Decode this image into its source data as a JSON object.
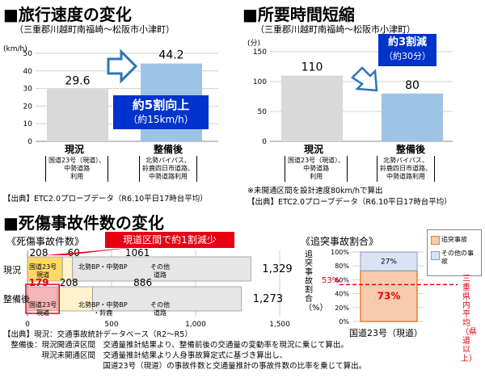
{
  "speed": {
    "title": "旅行速度の変化",
    "subtitle": "（三重郡川越町南福崎～松阪市小津町）",
    "unit": "(km/h)",
    "callout_l1": "約5割向上",
    "callout_l2": "（約15km/h）",
    "cat_current": "現況",
    "cat_after": "整備後",
    "route_current": [
      "国道23号（現道）、",
      "中勢道路",
      "利用"
    ],
    "route_after": [
      "北勢バイパス、",
      "鈴鹿四日市道路、",
      "中勢道路利用"
    ],
    "source": "【出典】ETC2.0プローブデータ（R6.10平日17時台平均）"
  },
  "time": {
    "title": "所要時間短縮",
    "subtitle": "（三重郡川越町南福崎～松阪市小津町）",
    "unit": "(分)",
    "callout_l1": "約3割減",
    "callout_l2": "（約30分）",
    "cat_current": "現況",
    "cat_after": "整備後",
    "route_current": [
      "国道23号（現道）、",
      "中勢道路",
      "利用"
    ],
    "route_after": [
      "北勢バイパス、",
      "鈴鹿四日市道路、",
      "中勢道路利用"
    ],
    "note": "※未開通区間を設計速度80km/hで算出",
    "source": "【出典】ETC2.0プローブデータ（R6.10平日17時台平均）"
  },
  "casualty": {
    "title": "死傷事故件数の変化",
    "subtitle": "《死傷事故件数》",
    "callout": "現道区間で約1割減少",
    "row_current": "現況",
    "row_after": "整備後",
    "seg_current_1": "国道23号",
    "seg_current_1b": "現道",
    "seg_current_2": "北勢BP・中勢BP",
    "seg_current_3a": "その他",
    "seg_current_3b": "道路",
    "seg_after_1": "国道23号",
    "seg_after_1b": "現道",
    "seg_after_2a": "北勢BP・中勢BP",
    "seg_after_2b": "・鈴鹿",
    "seg_after_3a": "その他",
    "seg_after_3b": "道路",
    "src_lines": [
      "【出典】現況：交通事故統計データベース（R2～R5）",
      "　整備後：現況開通済区間　交通量推計結果より、整備前後の交通量の変動率を現況に乗じて算出。",
      "　　　　　現況未開通区間　交通量推計結果より人身事故算定式に基づき算出し、",
      "　　　　　　　　　　　　　国道23号（現道）の事故件数と交通量推計の事故件数の比率を乗じて算出。"
    ]
  },
  "rearend": {
    "subtitle": "《追突事故割合》",
    "ylabel": "追突事故割合（%）",
    "xlabel": "国道23号（現道）",
    "legend_rear": "追突事故",
    "legend_other": "その他の事故",
    "avg_label": "53%",
    "side_label": "三重県内平均（県道以上）"
  },
  "colors": {
    "gray_bar": "#d9d9d9",
    "blue_bar": "#9dc3e6",
    "callout_blue": "#0033cc",
    "arrow_blue": "#2e75b6",
    "yellow": "#ffd966",
    "pink": "#f4b6b6",
    "red": "#e60012",
    "orange": "#f8cbad",
    "orange_border": "#ed7d31",
    "light_blue": "#dae3f3"
  },
  "chart_data": [
    {
      "type": "bar",
      "title": "旅行速度の変化",
      "ylabel": "(km/h)",
      "categories": [
        "現況",
        "整備後"
      ],
      "values": [
        29.6,
        44.2
      ],
      "ylim": [
        0,
        50
      ],
      "yticks": [
        0,
        10,
        20,
        30,
        40,
        50
      ],
      "grid": true
    },
    {
      "type": "bar",
      "title": "所要時間短縮",
      "ylabel": "(分)",
      "categories": [
        "現況",
        "整備後"
      ],
      "values": [
        110,
        80
      ],
      "ylim": [
        0,
        150
      ],
      "yticks": [
        0,
        50,
        100,
        150
      ],
      "grid": true
    },
    {
      "type": "bar",
      "orientation": "horizontal",
      "stacked": true,
      "title": "死傷事故件数の変化",
      "categories": [
        "現況",
        "整備後"
      ],
      "series": [
        {
          "name": "国道23号（現道）",
          "values": [
            208,
            179
          ]
        },
        {
          "name": "北勢BP・中勢BP",
          "values": [
            60,
            208
          ]
        },
        {
          "name": "その他道路",
          "values": [
            1061,
            886
          ]
        }
      ],
      "totals": [
        1329,
        1273
      ],
      "xlim": [
        0,
        1500
      ],
      "xticks": [
        0,
        500,
        1000,
        1500
      ]
    },
    {
      "type": "bar",
      "stacked": true,
      "title": "《追突事故割合》",
      "categories": [
        "国道23号（現道）"
      ],
      "series": [
        {
          "name": "追突事故",
          "values": [
            73
          ]
        },
        {
          "name": "その他の事故",
          "values": [
            27
          ]
        }
      ],
      "reference_line": 53,
      "ylim": [
        0,
        100
      ],
      "yticks": [
        0,
        20,
        40,
        60,
        80,
        100
      ]
    }
  ]
}
